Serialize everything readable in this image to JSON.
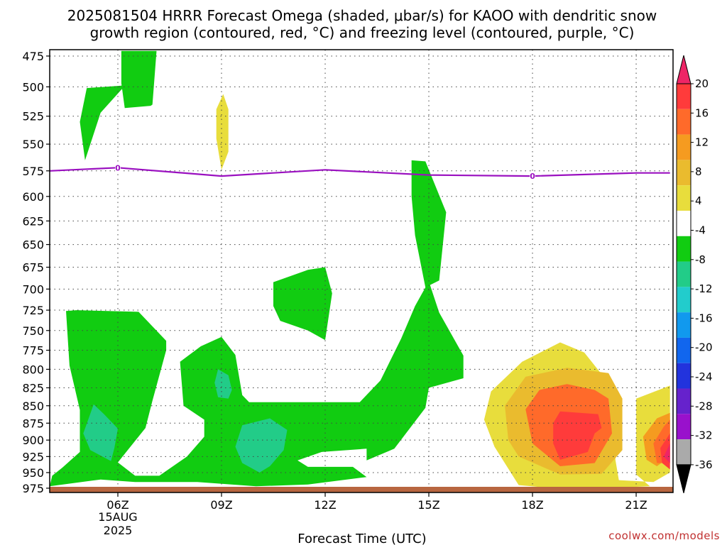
{
  "chart_data": {
    "type": "heatmap",
    "title_line1": "2025081504 HRRR Forecast Omega (shaded, μbar/s) for KAOO with dendritic snow",
    "title_line2": "growth region (contoured, red, °C) and freezing level (contoured, purple, °C)",
    "xlabel": "Forecast Time (UTC)",
    "x_ticks": [
      "06Z",
      "09Z",
      "12Z",
      "15Z",
      "18Z",
      "21Z"
    ],
    "x_date": [
      "15AUG",
      "2025"
    ],
    "y_ticks": [
      475,
      500,
      525,
      550,
      575,
      600,
      625,
      650,
      675,
      700,
      725,
      750,
      775,
      800,
      825,
      850,
      875,
      900,
      925,
      950,
      975
    ],
    "y_scale": "log-pressure (inverted)",
    "grid": "on (dotted)",
    "colorbar": {
      "labels": [
        20,
        16,
        12,
        8,
        4,
        -4,
        -8,
        -12,
        -16,
        -20,
        -24,
        -28,
        -32,
        -36
      ],
      "colors": [
        "#ee2566",
        "#ff3b3b",
        "#ff6a2a",
        "#f59b20",
        "#eabb2e",
        "#e8dd3c",
        "#ffffff",
        "#11cc11",
        "#22cc88",
        "#22cccc",
        "#1199ee",
        "#1166ee",
        "#2233dd",
        "#6622cc",
        "#9911cc",
        "#aaaaaa",
        "#000000"
      ]
    },
    "freezing_level": {
      "label": "0",
      "hours": [
        3,
        6,
        9,
        12,
        15,
        18,
        21,
        21.98
      ],
      "pressure": [
        575,
        572,
        580,
        574,
        579,
        580,
        577,
        577
      ]
    },
    "omega_regions": [
      {
        "value_class": "-4 to -8",
        "color": "#11cc11",
        "points": [
          [
            5.05,
            565
          ],
          [
            5.5,
            522
          ],
          [
            6.3,
            496
          ],
          [
            6.1,
            499
          ],
          [
            5.1,
            501
          ],
          [
            4.9,
            530
          ]
        ]
      },
      {
        "value_class": "-4 to -8",
        "color": "#11cc11",
        "points": [
          [
            6.1,
            497
          ],
          [
            6.1,
            471
          ],
          [
            7.12,
            471
          ],
          [
            7.0,
            515
          ],
          [
            6.95,
            516
          ],
          [
            6.2,
            518
          ]
        ]
      },
      {
        "value_class": "4 to 8",
        "color": "#e8dd3c",
        "points": [
          [
            9.0,
            574
          ],
          [
            8.85,
            545
          ],
          [
            8.85,
            519
          ],
          [
            9.05,
            506
          ],
          [
            9.2,
            519
          ],
          [
            9.2,
            557
          ]
        ]
      },
      {
        "value_class": "-4 to -8",
        "color": "#11cc11",
        "points": [
          [
            14.5,
            565
          ],
          [
            14.9,
            566
          ],
          [
            15.5,
            616
          ],
          [
            15.3,
            690
          ],
          [
            14.9,
            698
          ],
          [
            14.6,
            640
          ],
          [
            14.5,
            600
          ]
        ]
      },
      {
        "value_class": "-4 to -8",
        "color": "#11cc11",
        "points": [
          [
            10.5,
            692
          ],
          [
            11.5,
            678
          ],
          [
            12,
            675
          ],
          [
            12.2,
            705
          ],
          [
            12,
            762
          ],
          [
            11.5,
            750
          ],
          [
            10.7,
            738
          ],
          [
            10.5,
            720
          ]
        ]
      },
      {
        "value_class": "-4 to -8",
        "color": "#11cc11",
        "points": [
          [
            4.0,
            972
          ],
          [
            5.5,
            961
          ],
          [
            6.5,
            965
          ],
          [
            8.3,
            965
          ],
          [
            10.0,
            972
          ],
          [
            11.5,
            969
          ],
          [
            13.2,
            957
          ],
          [
            12.8,
            941
          ],
          [
            11.5,
            941
          ],
          [
            11.2,
            931
          ],
          [
            11.9,
            918
          ],
          [
            13.2,
            913
          ],
          [
            13.2,
            931
          ],
          [
            14.0,
            913
          ],
          [
            14.9,
            853
          ],
          [
            15.0,
            825
          ],
          [
            16.0,
            812
          ],
          [
            16.0,
            782
          ],
          [
            15.3,
            728
          ],
          [
            15.0,
            691
          ],
          [
            14.6,
            720
          ],
          [
            14.2,
            760
          ],
          [
            13.6,
            815
          ],
          [
            13.0,
            845
          ],
          [
            11.0,
            845
          ],
          [
            9.8,
            845
          ],
          [
            9.6,
            835
          ],
          [
            9.4,
            781
          ],
          [
            9.0,
            758
          ],
          [
            8.4,
            770
          ],
          [
            7.8,
            790
          ],
          [
            7.9,
            850
          ],
          [
            8.5,
            870
          ],
          [
            8.5,
            895
          ],
          [
            8.0,
            925
          ],
          [
            7.2,
            955
          ],
          [
            6.5,
            955
          ],
          [
            6.0,
            934
          ],
          [
            6.8,
            882
          ],
          [
            7.0,
            843
          ],
          [
            7.4,
            775
          ],
          [
            7.4,
            763
          ],
          [
            6.6,
            727
          ],
          [
            4.8,
            725
          ],
          [
            4.5,
            726
          ],
          [
            4.6,
            795
          ],
          [
            4.9,
            856
          ],
          [
            4.9,
            918
          ],
          [
            4.4,
            942
          ],
          [
            4.1,
            955
          ]
        ]
      },
      {
        "value_class": "-8 to -12",
        "color": "#22cc88",
        "points": [
          [
            5.8,
            932
          ],
          [
            5.2,
            915
          ],
          [
            5.0,
            890
          ],
          [
            5.3,
            848
          ],
          [
            5.6,
            862
          ],
          [
            6.0,
            883
          ],
          [
            5.9,
            912
          ]
        ]
      },
      {
        "value_class": "-8 to -12",
        "color": "#22cc88",
        "points": [
          [
            8.9,
            838
          ],
          [
            8.8,
            818
          ],
          [
            8.9,
            800
          ],
          [
            9.2,
            808
          ],
          [
            9.3,
            828
          ],
          [
            9.2,
            840
          ]
        ]
      },
      {
        "value_class": "-8 to -12",
        "color": "#22cc88",
        "points": [
          [
            10.1,
            950
          ],
          [
            9.6,
            935
          ],
          [
            9.4,
            910
          ],
          [
            9.6,
            878
          ],
          [
            10.4,
            868
          ],
          [
            10.9,
            885
          ],
          [
            10.8,
            915
          ],
          [
            10.4,
            940
          ]
        ]
      },
      {
        "value_class": "4 to 8",
        "color": "#e8dd3c",
        "points": [
          [
            17.6,
            970
          ],
          [
            18.8,
            976
          ],
          [
            20.0,
            975
          ],
          [
            21.4,
            972
          ],
          [
            21.0,
            953
          ],
          [
            21.0,
            870
          ],
          [
            21.0,
            840
          ],
          [
            21.98,
            822
          ],
          [
            21.98,
            950
          ],
          [
            21.5,
            965
          ],
          [
            20.5,
            962
          ],
          [
            20.4,
            930
          ],
          [
            20.4,
            830
          ],
          [
            19.5,
            778
          ],
          [
            18.8,
            765
          ],
          [
            17.7,
            790
          ],
          [
            16.8,
            830
          ],
          [
            16.6,
            870
          ],
          [
            16.9,
            910
          ]
        ]
      },
      {
        "value_class": "8 to 12",
        "color": "#eabb2e",
        "points": [
          [
            17.6,
            925
          ],
          [
            18.8,
            953
          ],
          [
            20.0,
            952
          ],
          [
            20.6,
            915
          ],
          [
            20.6,
            840
          ],
          [
            20.2,
            805
          ],
          [
            19.0,
            798
          ],
          [
            17.8,
            810
          ],
          [
            17.2,
            850
          ],
          [
            17.3,
            900
          ]
        ]
      },
      {
        "value_class": "12 to 16",
        "color": "#ff6a2a",
        "points": [
          [
            18.0,
            905
          ],
          [
            18.8,
            940
          ],
          [
            19.8,
            935
          ],
          [
            20.3,
            890
          ],
          [
            20.2,
            840
          ],
          [
            19.8,
            828
          ],
          [
            19.0,
            820
          ],
          [
            18.2,
            828
          ],
          [
            17.8,
            855
          ]
        ]
      },
      {
        "value_class": "16 to 20",
        "color": "#ff3b3b",
        "points": [
          [
            18.8,
            930
          ],
          [
            19.6,
            918
          ],
          [
            19.8,
            890
          ],
          [
            20.0,
            882
          ],
          [
            19.9,
            862
          ],
          [
            18.8,
            858
          ],
          [
            18.6,
            875
          ],
          [
            18.6,
            905
          ]
        ]
      },
      {
        "value_class": "4 to 8",
        "color": "#f59b20",
        "points": [
          [
            21.98,
            925
          ],
          [
            21.98,
            860
          ],
          [
            21.6,
            868
          ],
          [
            21.2,
            895
          ],
          [
            21.3,
            930
          ],
          [
            21.6,
            940
          ]
        ]
      },
      {
        "value_class": "8 to 12",
        "color": "#ff6a2a",
        "points": [
          [
            21.98,
            935
          ],
          [
            21.98,
            870
          ],
          [
            21.8,
            880
          ],
          [
            21.5,
            905
          ],
          [
            21.6,
            935
          ]
        ]
      },
      {
        "value_class": "12 to 16",
        "color": "#ff3b3b",
        "points": [
          [
            21.98,
            945
          ],
          [
            21.98,
            890
          ],
          [
            21.7,
            912
          ],
          [
            21.75,
            935
          ]
        ]
      },
      {
        "value_class": "16 to 20",
        "color": "#ee2566",
        "points": [
          [
            21.98,
            935
          ],
          [
            21.98,
            905
          ],
          [
            21.8,
            925
          ]
        ]
      }
    ],
    "ground": {
      "color": "#b86640"
    },
    "credit": "coolwx.com/models"
  }
}
